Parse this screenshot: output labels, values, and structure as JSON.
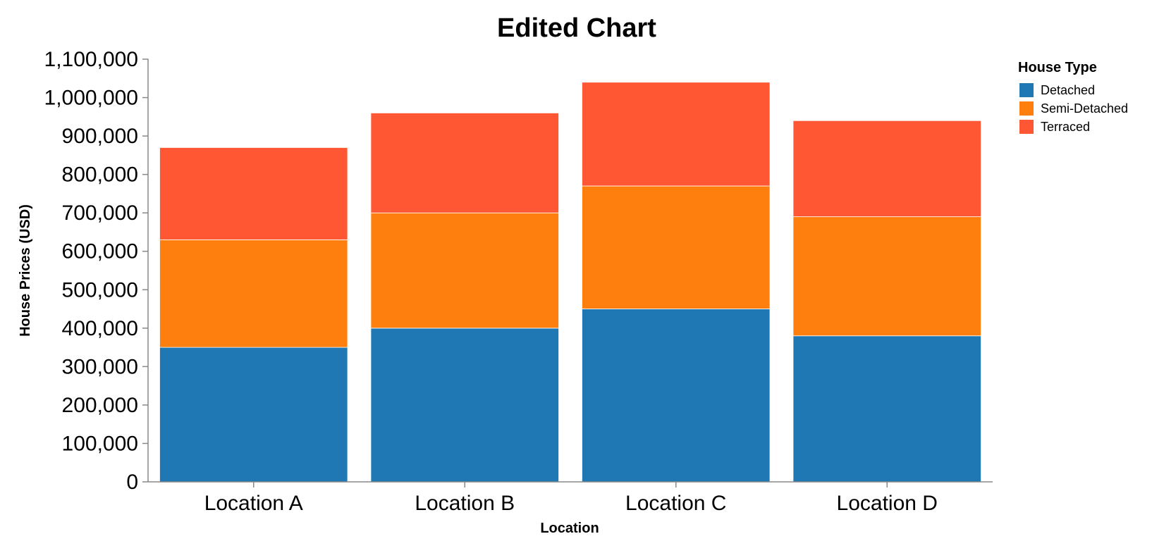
{
  "chart_data": {
    "type": "bar",
    "stacked": true,
    "title": "Edited Chart",
    "xlabel": "Location",
    "ylabel": "House Prices (USD)",
    "categories": [
      "Location A",
      "Location B",
      "Location C",
      "Location D"
    ],
    "series": [
      {
        "name": "Detached",
        "color": "#1f77b4",
        "values": [
          350000,
          400000,
          450000,
          380000
        ]
      },
      {
        "name": "Semi-Detached",
        "color": "#ff7f0e",
        "values": [
          280000,
          300000,
          320000,
          310000
        ]
      },
      {
        "name": "Terraced",
        "color": "#ff5733",
        "values": [
          240000,
          260000,
          270000,
          250000
        ]
      }
    ],
    "ylim": [
      0,
      1100000
    ],
    "yticks": [
      0,
      100000,
      200000,
      300000,
      400000,
      500000,
      600000,
      700000,
      800000,
      900000,
      1000000,
      1100000
    ],
    "ytick_labels": [
      "0",
      "100,000",
      "200,000",
      "300,000",
      "400,000",
      "500,000",
      "600,000",
      "700,000",
      "800,000",
      "900,000",
      "1,000,000",
      "1,100,000"
    ],
    "grid": false,
    "legend": {
      "title": "House Type",
      "position": "top-right"
    }
  }
}
